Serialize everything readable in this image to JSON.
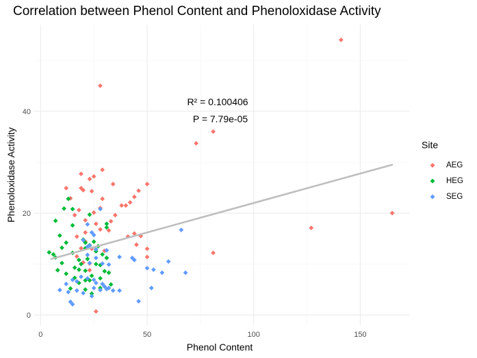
{
  "chart_data": {
    "type": "scatter",
    "title": "Correlation between Phenol Content and Phenoloxidase Activity",
    "xlabel": "Phenol Content",
    "ylabel": "Phenoloxidase Activity",
    "xlim": [
      -3,
      173
    ],
    "ylim": [
      -2,
      57
    ],
    "x_ticks": [
      0,
      50,
      100,
      150
    ],
    "y_ticks": [
      0,
      20,
      40
    ],
    "grid": true,
    "legend": {
      "title": "Site",
      "position": "right"
    },
    "annotations": [
      "R² = 0.100406",
      "P = 7.79e-05"
    ],
    "regression_line": {
      "x": [
        5,
        165
      ],
      "y": [
        11.0,
        29.5
      ],
      "color": "#bebebe"
    },
    "series": [
      {
        "name": "AEG",
        "color": "#F8766D",
        "points": [
          [
            141,
            54
          ],
          [
            28,
            45
          ],
          [
            81,
            36
          ],
          [
            73,
            33.7
          ],
          [
            165,
            20
          ],
          [
            127,
            17.1
          ],
          [
            81,
            12.2
          ],
          [
            29,
            28.5
          ],
          [
            19,
            27.7
          ],
          [
            25,
            27.2
          ],
          [
            23,
            26.7
          ],
          [
            34,
            25.7
          ],
          [
            50,
            25.7
          ],
          [
            12,
            24.9
          ],
          [
            19,
            24.9
          ],
          [
            20,
            24.5
          ],
          [
            24,
            24.3
          ],
          [
            46,
            24.4
          ],
          [
            44,
            23.2
          ],
          [
            14,
            22.9
          ],
          [
            29,
            22.8
          ],
          [
            40,
            21.5
          ],
          [
            38,
            21.5
          ],
          [
            42,
            22.1
          ],
          [
            28,
            21
          ],
          [
            18,
            20.6
          ],
          [
            25,
            20.1
          ],
          [
            16,
            19.6
          ],
          [
            35,
            19.6
          ],
          [
            33,
            18.4
          ],
          [
            21,
            18.6
          ],
          [
            26,
            17.9
          ],
          [
            28,
            16.8
          ],
          [
            32,
            16.6
          ],
          [
            21,
            16.2
          ],
          [
            44,
            16
          ],
          [
            17,
            15.4
          ],
          [
            41,
            15.4
          ],
          [
            47,
            15.5
          ],
          [
            21,
            14.4
          ],
          [
            45,
            13.8
          ],
          [
            24,
            13
          ],
          [
            19,
            13.1
          ],
          [
            50,
            13
          ],
          [
            30,
            12.6
          ],
          [
            17,
            11.5
          ],
          [
            20,
            10.3
          ],
          [
            23,
            10.1
          ],
          [
            50,
            11.4
          ],
          [
            23,
            8.8
          ],
          [
            26,
            0.7
          ]
        ]
      },
      {
        "name": "HEG",
        "color": "#00BA38",
        "points": [
          [
            11,
            20.9
          ],
          [
            13,
            22.8
          ],
          [
            15,
            20.8
          ],
          [
            23,
            19.7
          ],
          [
            7,
            18.5
          ],
          [
            15,
            17.6
          ],
          [
            31,
            17.9
          ],
          [
            31,
            17.2
          ],
          [
            9,
            15.6
          ],
          [
            12,
            14.2
          ],
          [
            20,
            14.8
          ],
          [
            21,
            14.2
          ],
          [
            23,
            13.7
          ],
          [
            25,
            14.4
          ],
          [
            27,
            13.5
          ],
          [
            10,
            13.2
          ],
          [
            21,
            13.1
          ],
          [
            4,
            12.3
          ],
          [
            6,
            11.9
          ],
          [
            7,
            11.3
          ],
          [
            15,
            12.2
          ],
          [
            26,
            12.5
          ],
          [
            29,
            11.9
          ],
          [
            22,
            11
          ],
          [
            18,
            10.8
          ],
          [
            31,
            11.2
          ],
          [
            10,
            10.2
          ],
          [
            19,
            10
          ],
          [
            26,
            10
          ],
          [
            28,
            9.8
          ],
          [
            16,
            9.3
          ],
          [
            18,
            8.9
          ],
          [
            21,
            8.7
          ],
          [
            30,
            8.6
          ],
          [
            8,
            8.8
          ],
          [
            12,
            8.1
          ],
          [
            24,
            7.7
          ],
          [
            32,
            8.3
          ],
          [
            16,
            7.3
          ],
          [
            28,
            7.2
          ],
          [
            21,
            6.8
          ],
          [
            18,
            6.3
          ],
          [
            23,
            6.8
          ],
          [
            33,
            6
          ],
          [
            14,
            5.2
          ],
          [
            21,
            5
          ],
          [
            28,
            5.3
          ],
          [
            24,
            4.2
          ]
        ]
      },
      {
        "name": "SEG",
        "color": "#619CFF",
        "points": [
          [
            28,
            20.8
          ],
          [
            22,
            17.8
          ],
          [
            24,
            16.2
          ],
          [
            25,
            15.7
          ],
          [
            66,
            16.7
          ],
          [
            20,
            14.7
          ],
          [
            23,
            13.6
          ],
          [
            22,
            13.4
          ],
          [
            26,
            12.9
          ],
          [
            31,
            12.7
          ],
          [
            37,
            11.4
          ],
          [
            22,
            11.8
          ],
          [
            26,
            11.2
          ],
          [
            43,
            11.2
          ],
          [
            44,
            10.8
          ],
          [
            23,
            10.2
          ],
          [
            29,
            10.1
          ],
          [
            32,
            9.9
          ],
          [
            53,
            8.9
          ],
          [
            57,
            8.3
          ],
          [
            50,
            9.2
          ],
          [
            60,
            10.5
          ],
          [
            68,
            8.3
          ],
          [
            19,
            7.5
          ],
          [
            22,
            7.2
          ],
          [
            25,
            6.9
          ],
          [
            15,
            6.9
          ],
          [
            17,
            6.6
          ],
          [
            26,
            6.3
          ],
          [
            29,
            6.1
          ],
          [
            30,
            5.6
          ],
          [
            32,
            5.3
          ],
          [
            12,
            6.1
          ],
          [
            9,
            4.9
          ],
          [
            13,
            4.5
          ],
          [
            17,
            4.8
          ],
          [
            20,
            4.3
          ],
          [
            25,
            5.3
          ],
          [
            28,
            4.9
          ],
          [
            31,
            5.1
          ],
          [
            34,
            4.8
          ],
          [
            37,
            4.8
          ],
          [
            52,
            5.3
          ],
          [
            24,
            3.7
          ],
          [
            14,
            2.6
          ],
          [
            15,
            2.1
          ],
          [
            46,
            2.7
          ]
        ]
      }
    ]
  }
}
